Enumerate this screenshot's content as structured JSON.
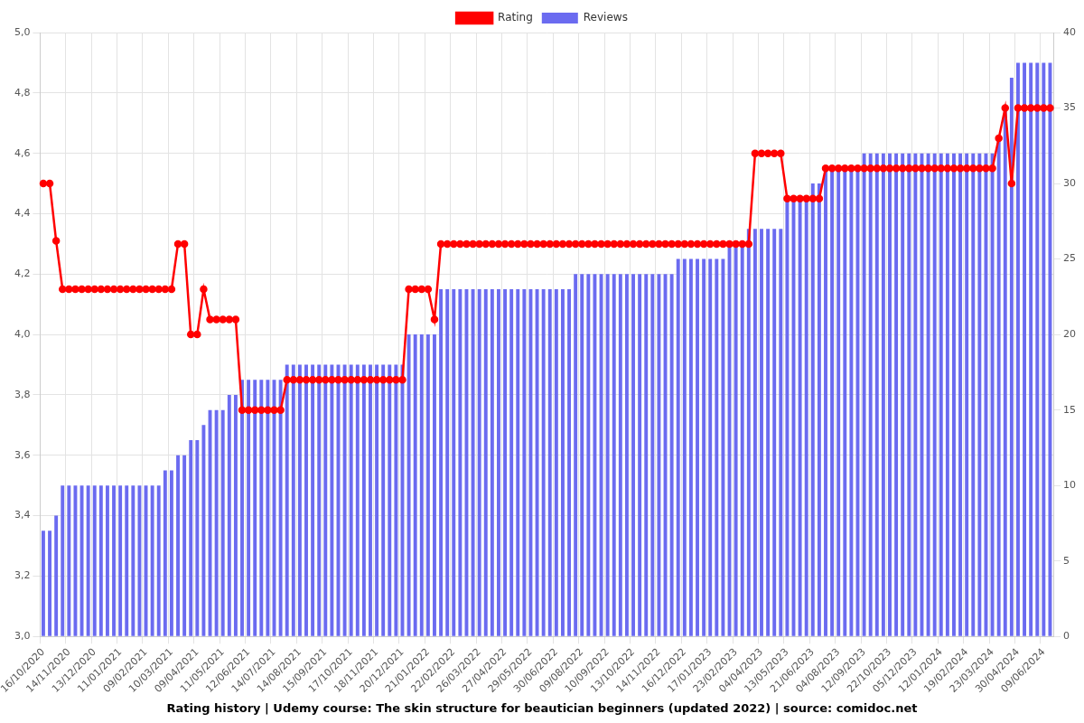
{
  "chart_data": {
    "type": "bar",
    "title": "Rating history | Udemy course: The skin structure for beautician beginners (updated 2022) | source: comidoc.net",
    "categories": [
      "16/10/2020",
      null,
      null,
      null,
      "14/11/2020",
      null,
      null,
      null,
      "13/12/2020",
      null,
      null,
      null,
      "11/01/2021",
      null,
      null,
      null,
      "09/02/2021",
      null,
      null,
      null,
      "10/03/2021",
      null,
      null,
      null,
      "09/04/2021",
      null,
      null,
      null,
      "11/05/2021",
      null,
      null,
      null,
      "12/06/2021",
      null,
      null,
      null,
      "14/07/2021",
      null,
      null,
      null,
      "14/08/2021",
      null,
      null,
      null,
      "15/09/2021",
      null,
      null,
      null,
      "17/10/2021",
      null,
      null,
      null,
      "18/11/2021",
      null,
      null,
      null,
      "20/12/2021",
      null,
      null,
      null,
      "21/01/2022",
      null,
      null,
      null,
      "22/02/2022",
      null,
      null,
      null,
      "26/03/2022",
      null,
      null,
      null,
      "27/04/2022",
      null,
      null,
      null,
      "29/05/2022",
      null,
      null,
      null,
      "30/06/2022",
      null,
      null,
      null,
      "09/08/2022",
      null,
      null,
      null,
      "10/09/2022",
      null,
      null,
      null,
      "13/10/2022",
      null,
      null,
      null,
      "14/11/2022",
      null,
      null,
      null,
      "16/12/2022",
      null,
      null,
      null,
      "17/01/2023",
      null,
      null,
      null,
      "23/02/2023",
      null,
      null,
      null,
      "04/04/2023",
      null,
      null,
      null,
      "13/05/2023",
      null,
      null,
      null,
      "21/06/2023",
      null,
      null,
      null,
      "04/08/2023",
      null,
      null,
      null,
      "12/09/2023",
      null,
      null,
      null,
      "22/10/2023",
      null,
      null,
      null,
      "05/12/2023",
      null,
      null,
      null,
      "12/01/2024",
      null,
      null,
      null,
      "19/02/2024",
      null,
      null,
      null,
      "23/03/2024",
      null,
      null,
      null,
      "30/04/2024",
      null,
      null,
      null,
      "09/06/2024",
      null
    ],
    "series": [
      {
        "name": "Rating",
        "type": "line",
        "color": "#ff0000",
        "marker": "circle",
        "axis": "y",
        "values": [
          4.5,
          4.5,
          4.31,
          4.15,
          4.15,
          4.15,
          4.15,
          4.15,
          4.15,
          4.15,
          4.15,
          4.15,
          4.15,
          4.15,
          4.15,
          4.15,
          4.15,
          4.15,
          4.15,
          4.15,
          4.15,
          4.3,
          4.3,
          4.0,
          4.0,
          4.15,
          4.05,
          4.05,
          4.05,
          4.05,
          4.05,
          3.75,
          3.75,
          3.75,
          3.75,
          3.75,
          3.75,
          3.75,
          3.85,
          3.85,
          3.85,
          3.85,
          3.85,
          3.85,
          3.85,
          3.85,
          3.85,
          3.85,
          3.85,
          3.85,
          3.85,
          3.85,
          3.85,
          3.85,
          3.85,
          3.85,
          3.85,
          4.15,
          4.15,
          4.15,
          4.15,
          4.05,
          4.3,
          4.3,
          4.3,
          4.3,
          4.3,
          4.3,
          4.3,
          4.3,
          4.3,
          4.3,
          4.3,
          4.3,
          4.3,
          4.3,
          4.3,
          4.3,
          4.3,
          4.3,
          4.3,
          4.3,
          4.3,
          4.3,
          4.3,
          4.3,
          4.3,
          4.3,
          4.3,
          4.3,
          4.3,
          4.3,
          4.3,
          4.3,
          4.3,
          4.3,
          4.3,
          4.3,
          4.3,
          4.3,
          4.3,
          4.3,
          4.3,
          4.3,
          4.3,
          4.3,
          4.3,
          4.3,
          4.3,
          4.3,
          4.3,
          4.6,
          4.6,
          4.6,
          4.6,
          4.6,
          4.45,
          4.45,
          4.45,
          4.45,
          4.45,
          4.45,
          4.55,
          4.55,
          4.55,
          4.55,
          4.55,
          4.55,
          4.55,
          4.55,
          4.55,
          4.55,
          4.55,
          4.55,
          4.55,
          4.55,
          4.55,
          4.55,
          4.55,
          4.55,
          4.55,
          4.55,
          4.55,
          4.55,
          4.55,
          4.55,
          4.55,
          4.55,
          4.55,
          4.65,
          4.75,
          4.5,
          4.75,
          4.75,
          4.75,
          4.75,
          4.75,
          4.75
        ]
      },
      {
        "name": "Reviews",
        "type": "bar",
        "color": "#6b6bf0",
        "axis": "y2",
        "values": [
          7,
          7,
          8,
          10,
          10,
          10,
          10,
          10,
          10,
          10,
          10,
          10,
          10,
          10,
          10,
          10,
          10,
          10,
          10,
          11,
          11,
          12,
          12,
          13,
          13,
          14,
          15,
          15,
          15,
          16,
          16,
          17,
          17,
          17,
          17,
          17,
          17,
          17,
          18,
          18,
          18,
          18,
          18,
          18,
          18,
          18,
          18,
          18,
          18,
          18,
          18,
          18,
          18,
          18,
          18,
          18,
          18,
          20,
          20,
          20,
          20,
          20,
          23,
          23,
          23,
          23,
          23,
          23,
          23,
          23,
          23,
          23,
          23,
          23,
          23,
          23,
          23,
          23,
          23,
          23,
          23,
          23,
          23,
          24,
          24,
          24,
          24,
          24,
          24,
          24,
          24,
          24,
          24,
          24,
          24,
          24,
          24,
          24,
          24,
          25,
          25,
          25,
          25,
          25,
          25,
          25,
          25,
          26,
          26,
          26,
          27,
          27,
          27,
          27,
          27,
          27,
          29,
          29,
          29,
          29,
          30,
          30,
          31,
          31,
          31,
          31,
          31,
          31,
          32,
          32,
          32,
          32,
          32,
          32,
          32,
          32,
          32,
          32,
          32,
          32,
          32,
          32,
          32,
          32,
          32,
          32,
          32,
          32,
          32,
          33,
          35,
          37,
          38,
          38,
          38,
          38,
          38,
          38
        ]
      }
    ],
    "ylim": [
      3,
      5
    ],
    "yticks": [
      {
        "value": 3,
        "label": "3,0"
      },
      {
        "value": 3.2,
        "label": "3,2"
      },
      {
        "value": 3.4,
        "label": "3,4"
      },
      {
        "value": 3.6,
        "label": "3,6"
      },
      {
        "value": 3.8,
        "label": "3,8"
      },
      {
        "value": 4,
        "label": "4,0"
      },
      {
        "value": 4.2,
        "label": "4,2"
      },
      {
        "value": 4.4,
        "label": "4,4"
      },
      {
        "value": 4.6,
        "label": "4,6"
      },
      {
        "value": 4.8,
        "label": "4,8"
      },
      {
        "value": 5,
        "label": "5,0"
      }
    ],
    "y2lim": [
      0,
      40
    ],
    "y2ticks": [
      0,
      5,
      10,
      15,
      20,
      25,
      30,
      35,
      40
    ],
    "grid": true,
    "legend": "top"
  }
}
